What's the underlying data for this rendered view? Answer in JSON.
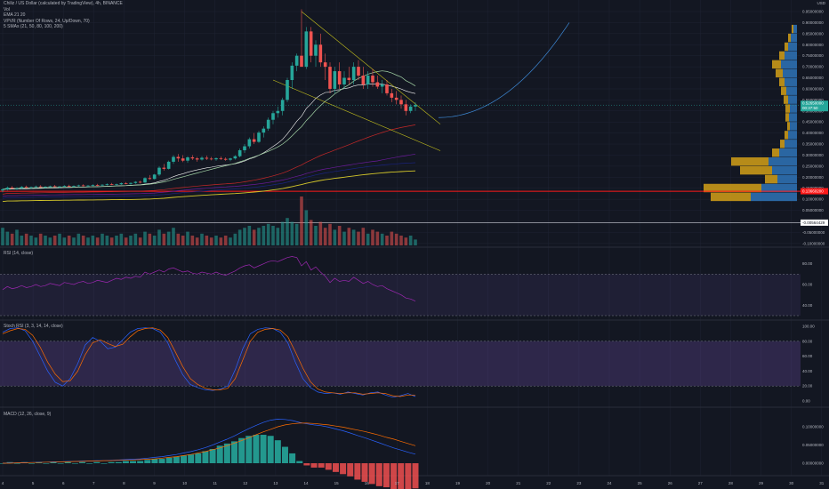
{
  "header": {
    "title": "Chiliz / US Dollar (calculated by TradingView), 4h, BINANCE",
    "indicators": [
      "Vol",
      "EMA 21 20",
      "VPVR (Number Of Rows, 24, Up/Down, 70)",
      "5 SMAs (21, 50, 80, 100, 200)"
    ],
    "currency": "USD"
  },
  "colors": {
    "background": "#131722",
    "grid": "#1f2433",
    "up": "#26a69a",
    "down": "#ef5350",
    "text": "#b2b5be",
    "rsi_band": "#7e57c2",
    "ema": "#f5f5f5",
    "sma1": "#a5d6a7",
    "sma2": "#c62828",
    "sma3": "#6a1b9a",
    "sma4": "#1a237e",
    "sma5": "#d4c72a",
    "wedge": "#c9c41c",
    "projection": "#3d89d6",
    "support": "#ff1a1a",
    "current_tag": "#26a69a"
  },
  "price_axis": {
    "ticks": [
      "0.95000000",
      "0.90000000",
      "0.85000000",
      "0.80000000",
      "0.75000000",
      "0.70000000",
      "0.65000000",
      "0.60000000",
      "0.55000000",
      "0.50000000",
      "0.45000000",
      "0.40000000",
      "0.35000000",
      "0.30000000",
      "0.25000000",
      "0.20000000",
      "0.15000000",
      "0.10000000",
      "0.05000000",
      "0.00000000",
      "-0.05000000",
      "-0.10000000"
    ],
    "current_price": "0.52650000",
    "countdown": "00:37:50",
    "support_label": "0.13660200",
    "lower_label": "-0.00564429"
  },
  "time_axis": {
    "labels": [
      "4",
      "5",
      "6",
      "7",
      "8",
      "9",
      "10",
      "11",
      "12",
      "13",
      "14",
      "15",
      "16",
      "17",
      "18",
      "19",
      "20",
      "21",
      "22",
      "23",
      "24",
      "25",
      "26",
      "27",
      "28",
      "29",
      "30",
      "31"
    ]
  },
  "rsi": {
    "label": "RSI (14, close)",
    "ticks": [
      "80.00",
      "60.00",
      "40.00"
    ]
  },
  "stoch": {
    "label": "Stoch RSI (3, 3, 14, 14, close)",
    "ticks": [
      "100.00",
      "80.00",
      "60.00",
      "40.00",
      "20.00",
      "0.00"
    ]
  },
  "macd": {
    "label": "MACD (12, 26, close, 9)",
    "ticks": [
      "0.10000000",
      "0.05000000",
      "0.00000000"
    ]
  },
  "chart_data": {
    "type": "candlestick",
    "symbol": "CHZUSD",
    "interval": "4h",
    "ylim": [
      -0.1,
      1.0
    ],
    "current_price": 0.5265,
    "support_level": 0.1366,
    "candles": [
      [
        0.14,
        0.15,
        0.132,
        0.145
      ],
      [
        0.145,
        0.158,
        0.14,
        0.153
      ],
      [
        0.153,
        0.16,
        0.146,
        0.149
      ],
      [
        0.149,
        0.155,
        0.142,
        0.15
      ],
      [
        0.15,
        0.16,
        0.147,
        0.156
      ],
      [
        0.156,
        0.162,
        0.15,
        0.152
      ],
      [
        0.152,
        0.158,
        0.147,
        0.155
      ],
      [
        0.155,
        0.162,
        0.151,
        0.158
      ],
      [
        0.158,
        0.164,
        0.152,
        0.155
      ],
      [
        0.155,
        0.16,
        0.15,
        0.157
      ],
      [
        0.157,
        0.162,
        0.153,
        0.159
      ],
      [
        0.159,
        0.165,
        0.154,
        0.156
      ],
      [
        0.156,
        0.16,
        0.151,
        0.158
      ],
      [
        0.158,
        0.164,
        0.154,
        0.161
      ],
      [
        0.161,
        0.166,
        0.156,
        0.158
      ],
      [
        0.158,
        0.163,
        0.154,
        0.16
      ],
      [
        0.16,
        0.166,
        0.156,
        0.163
      ],
      [
        0.163,
        0.168,
        0.158,
        0.16
      ],
      [
        0.16,
        0.165,
        0.156,
        0.162
      ],
      [
        0.162,
        0.168,
        0.158,
        0.165
      ],
      [
        0.165,
        0.17,
        0.16,
        0.163
      ],
      [
        0.163,
        0.168,
        0.159,
        0.166
      ],
      [
        0.166,
        0.172,
        0.162,
        0.169
      ],
      [
        0.169,
        0.174,
        0.164,
        0.166
      ],
      [
        0.166,
        0.171,
        0.162,
        0.168
      ],
      [
        0.168,
        0.176,
        0.165,
        0.173
      ],
      [
        0.173,
        0.178,
        0.168,
        0.17
      ],
      [
        0.17,
        0.176,
        0.166,
        0.174
      ],
      [
        0.174,
        0.182,
        0.17,
        0.179
      ],
      [
        0.179,
        0.184,
        0.172,
        0.176
      ],
      [
        0.176,
        0.2,
        0.174,
        0.196
      ],
      [
        0.196,
        0.21,
        0.188,
        0.192
      ],
      [
        0.192,
        0.215,
        0.19,
        0.212
      ],
      [
        0.212,
        0.25,
        0.205,
        0.243
      ],
      [
        0.243,
        0.26,
        0.23,
        0.238
      ],
      [
        0.238,
        0.275,
        0.235,
        0.27
      ],
      [
        0.27,
        0.3,
        0.26,
        0.292
      ],
      [
        0.292,
        0.305,
        0.27,
        0.285
      ],
      [
        0.285,
        0.3,
        0.268,
        0.275
      ],
      [
        0.275,
        0.295,
        0.265,
        0.29
      ],
      [
        0.29,
        0.3,
        0.278,
        0.285
      ],
      [
        0.285,
        0.292,
        0.27,
        0.28
      ],
      [
        0.28,
        0.295,
        0.275,
        0.288
      ],
      [
        0.288,
        0.298,
        0.278,
        0.284
      ],
      [
        0.284,
        0.292,
        0.276,
        0.281
      ],
      [
        0.281,
        0.29,
        0.274,
        0.286
      ],
      [
        0.286,
        0.294,
        0.278,
        0.283
      ],
      [
        0.283,
        0.29,
        0.274,
        0.279
      ],
      [
        0.279,
        0.288,
        0.272,
        0.285
      ],
      [
        0.285,
        0.3,
        0.28,
        0.295
      ],
      [
        0.295,
        0.33,
        0.29,
        0.322
      ],
      [
        0.322,
        0.35,
        0.31,
        0.34
      ],
      [
        0.34,
        0.38,
        0.33,
        0.372
      ],
      [
        0.372,
        0.4,
        0.35,
        0.36
      ],
      [
        0.36,
        0.41,
        0.355,
        0.402
      ],
      [
        0.402,
        0.43,
        0.38,
        0.42
      ],
      [
        0.42,
        0.47,
        0.41,
        0.46
      ],
      [
        0.46,
        0.5,
        0.44,
        0.49
      ],
      [
        0.49,
        0.52,
        0.47,
        0.5
      ],
      [
        0.5,
        0.56,
        0.48,
        0.55
      ],
      [
        0.55,
        0.65,
        0.54,
        0.64
      ],
      [
        0.64,
        0.72,
        0.6,
        0.705
      ],
      [
        0.705,
        0.76,
        0.68,
        0.75
      ],
      [
        0.75,
        0.96,
        0.7,
        0.7
      ],
      [
        0.7,
        0.88,
        0.69,
        0.86
      ],
      [
        0.86,
        0.88,
        0.72,
        0.75
      ],
      [
        0.75,
        0.82,
        0.7,
        0.8
      ],
      [
        0.8,
        0.85,
        0.7,
        0.72
      ],
      [
        0.72,
        0.76,
        0.64,
        0.7
      ],
      [
        0.7,
        0.72,
        0.58,
        0.6
      ],
      [
        0.6,
        0.7,
        0.58,
        0.68
      ],
      [
        0.68,
        0.72,
        0.6,
        0.62
      ],
      [
        0.62,
        0.68,
        0.6,
        0.65
      ],
      [
        0.65,
        0.7,
        0.62,
        0.64
      ],
      [
        0.64,
        0.72,
        0.62,
        0.7
      ],
      [
        0.7,
        0.73,
        0.64,
        0.66
      ],
      [
        0.66,
        0.7,
        0.6,
        0.62
      ],
      [
        0.62,
        0.68,
        0.6,
        0.66
      ],
      [
        0.66,
        0.69,
        0.61,
        0.63
      ],
      [
        0.63,
        0.66,
        0.6,
        0.61
      ],
      [
        0.61,
        0.64,
        0.58,
        0.62
      ],
      [
        0.62,
        0.64,
        0.57,
        0.58
      ],
      [
        0.58,
        0.6,
        0.54,
        0.56
      ],
      [
        0.56,
        0.59,
        0.53,
        0.55
      ],
      [
        0.55,
        0.57,
        0.51,
        0.53
      ],
      [
        0.53,
        0.55,
        0.48,
        0.5
      ],
      [
        0.5,
        0.53,
        0.49,
        0.52
      ],
      [
        0.52,
        0.54,
        0.5,
        0.527
      ]
    ],
    "volume": [
      9,
      7,
      6,
      8,
      5,
      6,
      5,
      4,
      6,
      5,
      4,
      5,
      6,
      4,
      5,
      4,
      6,
      5,
      4,
      5,
      4,
      6,
      5,
      4,
      5,
      6,
      4,
      5,
      6,
      4,
      7,
      6,
      5,
      8,
      6,
      7,
      9,
      6,
      5,
      7,
      5,
      4,
      6,
      5,
      4,
      5,
      4,
      5,
      4,
      6,
      8,
      9,
      10,
      8,
      9,
      10,
      11,
      10,
      9,
      12,
      14,
      12,
      11,
      25,
      18,
      13,
      10,
      12,
      9,
      11,
      8,
      10,
      7,
      9,
      8,
      7,
      9,
      6,
      8,
      7,
      6,
      5,
      7,
      6,
      5,
      4,
      5,
      3
    ],
    "rsi_values": [
      55,
      58,
      56,
      57,
      59,
      57,
      58,
      60,
      58,
      59,
      61,
      60,
      59,
      62,
      61,
      60,
      62,
      63,
      61,
      62,
      64,
      63,
      62,
      64,
      66,
      65,
      67,
      66,
      68,
      67,
      72,
      70,
      72,
      74,
      72,
      75,
      76,
      74,
      72,
      73,
      71,
      70,
      72,
      71,
      70,
      72,
      70,
      69,
      71,
      73,
      76,
      78,
      79,
      76,
      78,
      80,
      82,
      83,
      82,
      84,
      86,
      87,
      86,
      78,
      82,
      74,
      77,
      72,
      68,
      62,
      66,
      63,
      64,
      63,
      67,
      64,
      61,
      63,
      60,
      58,
      59,
      56,
      54,
      52,
      50,
      47,
      46,
      44
    ],
    "stoch_k": [
      92,
      97,
      98,
      94,
      80,
      60,
      40,
      25,
      20,
      30,
      50,
      75,
      85,
      80,
      70,
      72,
      82,
      92,
      97,
      98,
      97,
      92,
      78,
      55,
      35,
      22,
      18,
      15,
      14,
      16,
      20,
      42,
      70,
      90,
      96,
      98,
      97,
      92,
      78,
      52,
      30,
      18,
      12,
      10,
      11,
      9,
      12,
      10,
      8,
      11,
      12,
      8,
      5,
      7,
      10,
      6
    ],
    "stoch_d": [
      90,
      94,
      97,
      96,
      88,
      72,
      52,
      36,
      26,
      27,
      40,
      62,
      78,
      82,
      77,
      73,
      76,
      86,
      94,
      97,
      98,
      95,
      85,
      66,
      46,
      30,
      22,
      17,
      15,
      15,
      17,
      30,
      55,
      80,
      92,
      96,
      97,
      95,
      86,
      66,
      44,
      26,
      16,
      12,
      11,
      10,
      11,
      11,
      9,
      10,
      11,
      10,
      7,
      6,
      8,
      8
    ],
    "macd_line": [
      0.0,
      0.001,
      0.001,
      0.002,
      0.002,
      0.003,
      0.003,
      0.004,
      0.004,
      0.005,
      0.005,
      0.006,
      0.006,
      0.007,
      0.007,
      0.008,
      0.009,
      0.01,
      0.011,
      0.012,
      0.014,
      0.016,
      0.018,
      0.021,
      0.024,
      0.028,
      0.032,
      0.037,
      0.043,
      0.05,
      0.058,
      0.066,
      0.075,
      0.085,
      0.095,
      0.104,
      0.112,
      0.118,
      0.121,
      0.12,
      0.117,
      0.112,
      0.108,
      0.105,
      0.103,
      0.099,
      0.094,
      0.089,
      0.083,
      0.076,
      0.07,
      0.063,
      0.056,
      0.049,
      0.042,
      0.036,
      0.03,
      0.025
    ],
    "macd_signal": [
      0.0,
      0.0,
      0.001,
      0.001,
      0.002,
      0.002,
      0.003,
      0.003,
      0.004,
      0.004,
      0.005,
      0.005,
      0.006,
      0.006,
      0.007,
      0.007,
      0.008,
      0.008,
      0.009,
      0.01,
      0.011,
      0.012,
      0.014,
      0.016,
      0.018,
      0.021,
      0.024,
      0.028,
      0.032,
      0.037,
      0.042,
      0.048,
      0.055,
      0.062,
      0.07,
      0.078,
      0.086,
      0.093,
      0.1,
      0.105,
      0.108,
      0.11,
      0.11,
      0.109,
      0.107,
      0.105,
      0.102,
      0.099,
      0.095,
      0.091,
      0.087,
      0.082,
      0.077,
      0.071,
      0.066,
      0.06,
      0.054,
      0.048
    ]
  }
}
